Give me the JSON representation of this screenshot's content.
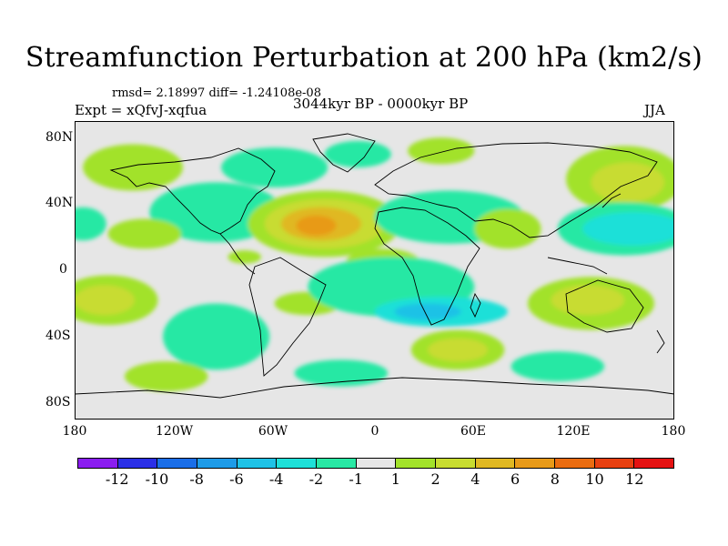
{
  "title": "Streamfunction Perturbation at 200 hPa (km2/s)",
  "stats": "rmsd= 2.18997 diff= -1.24108e-08",
  "experiment": "Expt = xQfvJ-xqfua",
  "period": "3044kyr BP - 0000kyr BP",
  "season": "JJA",
  "lat_axis": [
    "80N",
    "40N",
    "0",
    "40S",
    "80S"
  ],
  "lon_axis": [
    "180",
    "120W",
    "60W",
    "0",
    "60E",
    "120E",
    "180"
  ],
  "colorbar": {
    "colors": [
      "#8b1df0",
      "#2b2fe6",
      "#1a6ee8",
      "#1e9be8",
      "#1fc2e6",
      "#1ee0d8",
      "#28e8a4",
      "#e6e6e6",
      "#a2e22a",
      "#c8dc30",
      "#e0b822",
      "#e89a18",
      "#ea6c10",
      "#e84010",
      "#e51212"
    ],
    "labels": [
      "-12",
      "-10",
      "-8",
      "-6",
      "-4",
      "-2",
      "-1",
      "1",
      "2",
      "4",
      "6",
      "8",
      "10",
      "12"
    ]
  },
  "map_regions": [
    {
      "level": "2",
      "lon": -145,
      "lat": 62,
      "rlon": 30,
      "rlat": 14
    },
    {
      "level": "-1",
      "lon": -95,
      "lat": 35,
      "rlon": 40,
      "rlat": 18
    },
    {
      "level": "-1",
      "lon": -60,
      "lat": 62,
      "rlon": 32,
      "rlat": 12
    },
    {
      "level": "-1",
      "lon": -10,
      "lat": 70,
      "rlon": 20,
      "rlat": 8
    },
    {
      "level": "2",
      "lon": 40,
      "lat": 72,
      "rlon": 20,
      "rlat": 8
    },
    {
      "level": "-1",
      "lon": -175,
      "lat": 28,
      "rlon": 14,
      "rlat": 10
    },
    {
      "level": "2",
      "lon": -138,
      "lat": 22,
      "rlon": 22,
      "rlat": 9
    },
    {
      "level": "2",
      "lon": -30,
      "lat": 28,
      "rlon": 46,
      "rlat": 20
    },
    {
      "level": "4",
      "lon": -30,
      "lat": 28,
      "rlon": 36,
      "rlat": 15
    },
    {
      "level": "6",
      "lon": -32,
      "lat": 28,
      "rlon": 24,
      "rlat": 10
    },
    {
      "level": "8",
      "lon": -35,
      "lat": 27,
      "rlon": 12,
      "rlat": 6
    },
    {
      "level": "2",
      "lon": -78,
      "lat": 8,
      "rlon": 10,
      "rlat": 4
    },
    {
      "level": "-1",
      "lon": 45,
      "lat": 32,
      "rlon": 45,
      "rlat": 16
    },
    {
      "level": "2",
      "lon": 5,
      "lat": 5,
      "rlon": 22,
      "rlat": 8
    },
    {
      "level": "2",
      "lon": 150,
      "lat": 55,
      "rlon": 35,
      "rlat": 20
    },
    {
      "level": "4",
      "lon": 152,
      "lat": 53,
      "rlon": 22,
      "rlat": 12
    },
    {
      "level": "-1",
      "lon": 150,
      "lat": 25,
      "rlon": 40,
      "rlat": 16
    },
    {
      "level": "-2",
      "lon": 155,
      "lat": 25,
      "rlon": 30,
      "rlat": 10
    },
    {
      "level": "2",
      "lon": 80,
      "lat": 25,
      "rlon": 20,
      "rlat": 12
    },
    {
      "level": "2",
      "lon": -160,
      "lat": -18,
      "rlon": 30,
      "rlat": 15
    },
    {
      "level": "4",
      "lon": -162,
      "lat": -18,
      "rlon": 18,
      "rlat": 9
    },
    {
      "level": "2",
      "lon": -40,
      "lat": -20,
      "rlon": 20,
      "rlat": 7
    },
    {
      "level": "-1",
      "lon": 10,
      "lat": -10,
      "rlon": 50,
      "rlat": 18
    },
    {
      "level": "-2",
      "lon": 40,
      "lat": -25,
      "rlon": 40,
      "rlat": 9
    },
    {
      "level": "-4",
      "lon": 32,
      "lat": -25,
      "rlon": 20,
      "rlat": 5
    },
    {
      "level": "2",
      "lon": 130,
      "lat": -20,
      "rlon": 38,
      "rlat": 16
    },
    {
      "level": "4",
      "lon": 128,
      "lat": -18,
      "rlon": 22,
      "rlat": 9
    },
    {
      "level": "-1",
      "lon": -95,
      "lat": -40,
      "rlon": 32,
      "rlat": 20
    },
    {
      "level": "2",
      "lon": 50,
      "lat": -48,
      "rlon": 28,
      "rlat": 12
    },
    {
      "level": "4",
      "lon": 50,
      "lat": -48,
      "rlon": 18,
      "rlat": 7
    },
    {
      "level": "-1",
      "lon": 110,
      "lat": -58,
      "rlon": 28,
      "rlat": 9
    },
    {
      "level": "2",
      "lon": -125,
      "lat": -64,
      "rlon": 25,
      "rlat": 9
    },
    {
      "level": "-1",
      "lon": -20,
      "lat": -62,
      "rlon": 28,
      "rlat": 8
    }
  ]
}
